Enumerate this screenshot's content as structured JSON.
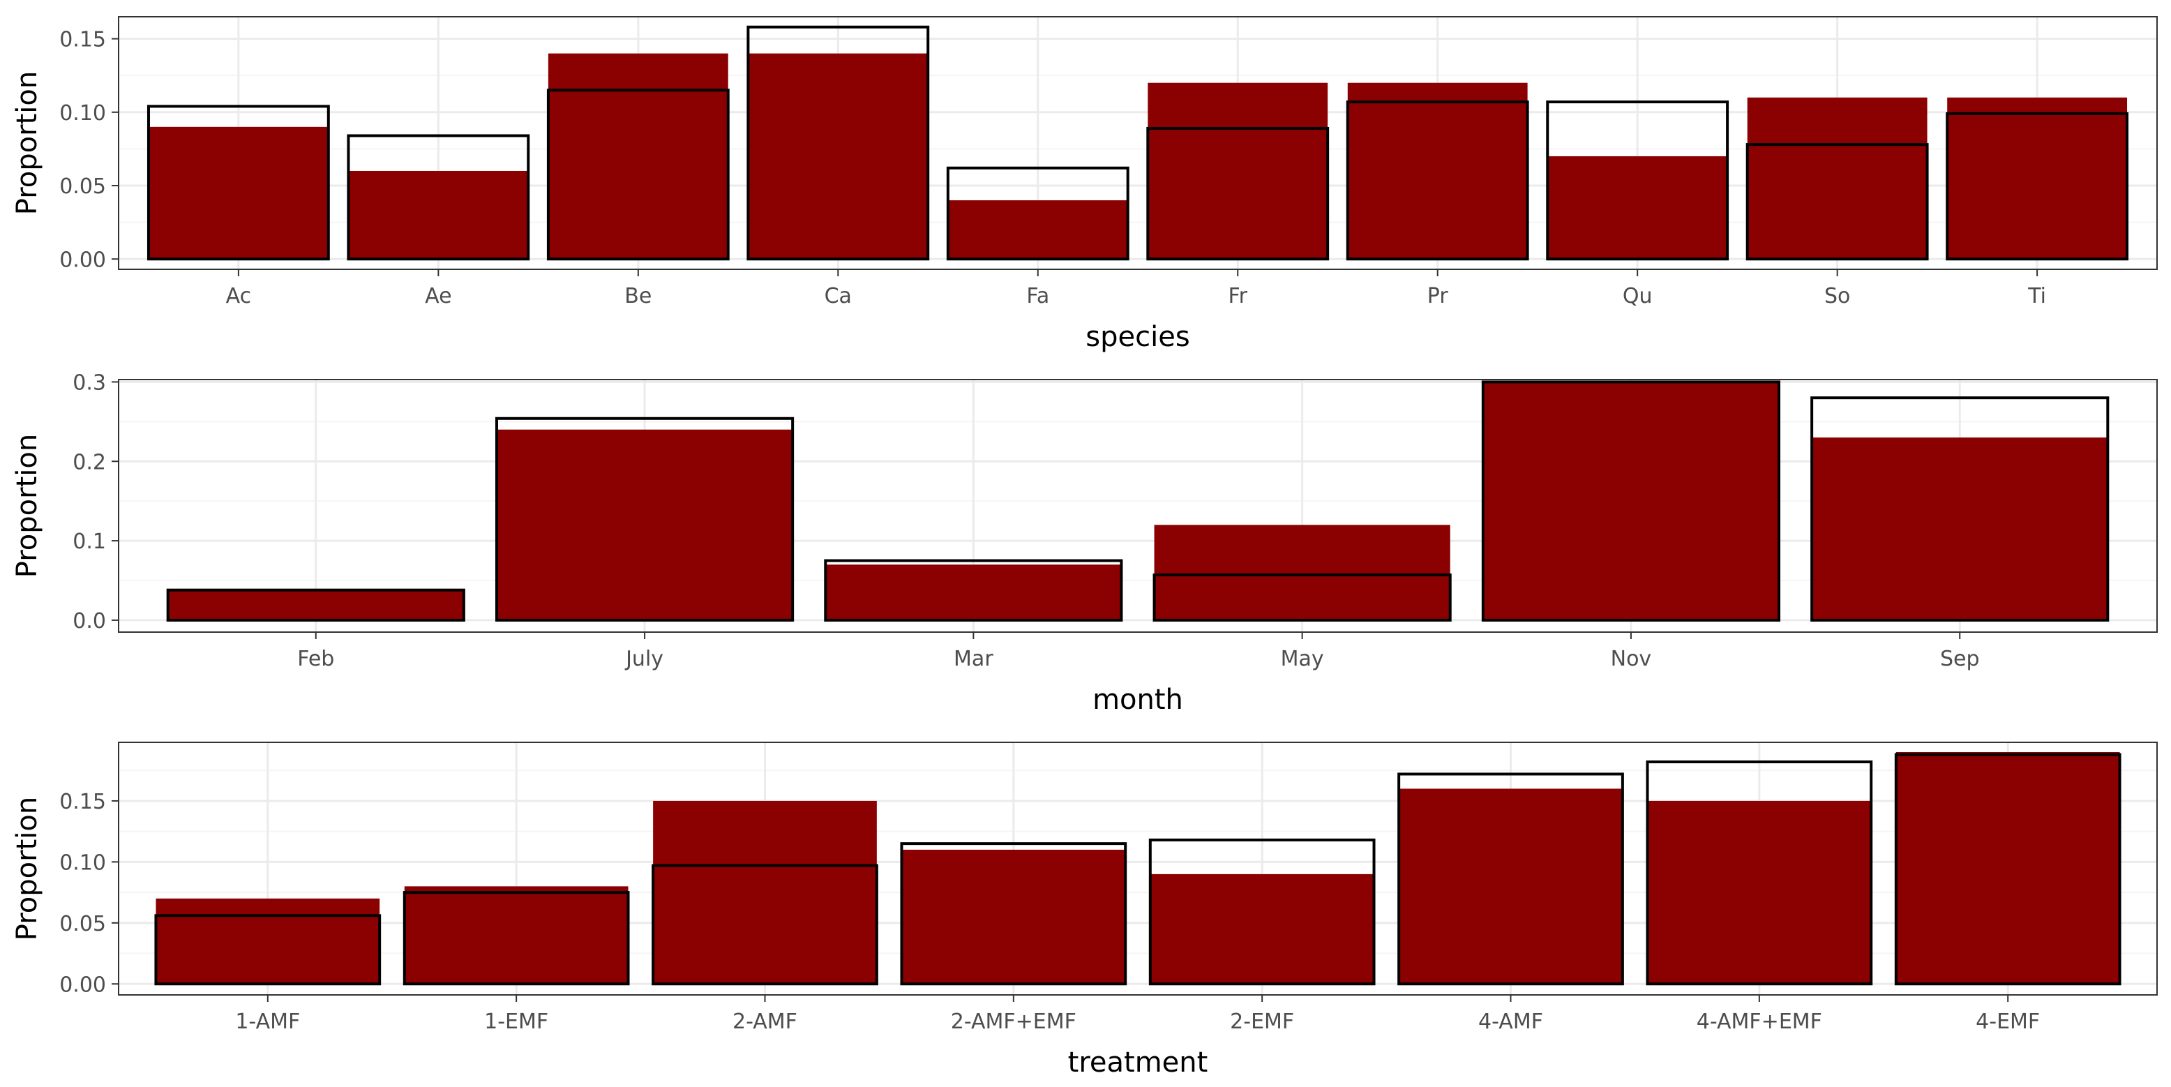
{
  "chart_data": [
    {
      "type": "bar",
      "xlabel": "species",
      "ylabel": "Proportion",
      "ylim": [
        -0.007,
        0.165
      ],
      "yticks": [
        0.0,
        0.05,
        0.1,
        0.15
      ],
      "ytick_labels": [
        "0.00",
        "0.05",
        "0.10",
        "0.15"
      ],
      "categories": [
        "Ac",
        "Ae",
        "Be",
        "Ca",
        "Fa",
        "Fr",
        "Pr",
        "Qu",
        "So",
        "Ti"
      ],
      "series": [
        {
          "kind": "filled",
          "values": [
            0.09,
            0.06,
            0.14,
            0.14,
            0.04,
            0.12,
            0.12,
            0.07,
            0.11,
            0.11
          ]
        },
        {
          "kind": "outline",
          "values": [
            0.104,
            0.084,
            0.115,
            0.158,
            0.062,
            0.089,
            0.107,
            0.107,
            0.078,
            0.099
          ]
        }
      ],
      "grid": true
    },
    {
      "type": "bar",
      "xlabel": "month",
      "ylabel": "Proportion",
      "ylim": [
        -0.015,
        0.303
      ],
      "yticks": [
        0.0,
        0.1,
        0.2,
        0.3
      ],
      "ytick_labels": [
        "0.0",
        "0.1",
        "0.2",
        "0.3"
      ],
      "categories": [
        "Feb",
        "July",
        "Mar",
        "May",
        "Nov",
        "Sep"
      ],
      "series": [
        {
          "kind": "filled",
          "values": [
            0.037,
            0.24,
            0.07,
            0.12,
            0.3,
            0.23
          ]
        },
        {
          "kind": "outline",
          "values": [
            0.038,
            0.254,
            0.075,
            0.057,
            0.3,
            0.28
          ]
        }
      ],
      "grid": true
    },
    {
      "type": "bar",
      "xlabel": "treatment",
      "ylabel": "Proportion",
      "ylim": [
        -0.009,
        0.198
      ],
      "yticks": [
        0.0,
        0.05,
        0.1,
        0.15
      ],
      "ytick_labels": [
        "0.00",
        "0.05",
        "0.10",
        "0.15"
      ],
      "categories": [
        "1-AMF",
        "1-EMF",
        "2-AMF",
        "2-AMF+EMF",
        "2-EMF",
        "4-AMF",
        "4-AMF+EMF",
        "4-EMF"
      ],
      "series": [
        {
          "kind": "filled",
          "values": [
            0.07,
            0.08,
            0.15,
            0.11,
            0.09,
            0.16,
            0.15,
            0.19
          ]
        },
        {
          "kind": "outline",
          "values": [
            0.056,
            0.075,
            0.097,
            0.115,
            0.118,
            0.172,
            0.182,
            0.188
          ]
        }
      ],
      "grid": true
    }
  ],
  "colors": {
    "fill": "#8b0000",
    "outline": "#000000",
    "grid_major": "#ebebeb",
    "grid_minor": "#f5f5f5",
    "panel_border": "#333333",
    "tick_text": "#4d4d4d"
  }
}
